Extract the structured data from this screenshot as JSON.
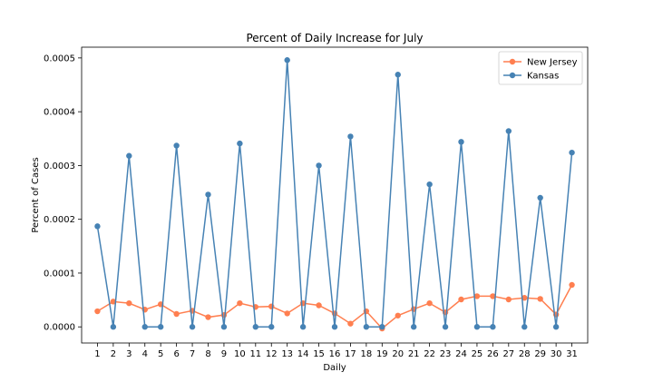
{
  "chart_data": {
    "type": "line",
    "title": "Percent of Daily Increase for July",
    "xlabel": "Daily",
    "ylabel": "Percent of Cases",
    "x": [
      1,
      2,
      3,
      4,
      5,
      6,
      7,
      8,
      9,
      10,
      11,
      12,
      13,
      14,
      15,
      16,
      17,
      18,
      19,
      20,
      21,
      22,
      23,
      24,
      25,
      26,
      27,
      28,
      29,
      30,
      31
    ],
    "x_tick_labels": [
      "1",
      "2",
      "3",
      "4",
      "5",
      "6",
      "7",
      "8",
      "9",
      "10",
      "11",
      "12",
      "13",
      "14",
      "15",
      "16",
      "17",
      "18",
      "19",
      "20",
      "21",
      "22",
      "23",
      "24",
      "25",
      "26",
      "27",
      "28",
      "29",
      "30",
      "31"
    ],
    "ylim": [
      -3e-05,
      0.00052
    ],
    "yticks": [
      0,
      0.0001,
      0.0002,
      0.0003,
      0.0004,
      0.0005
    ],
    "ytick_labels": [
      "0.0000",
      "0.0001",
      "0.0002",
      "0.0003",
      "0.0004",
      "0.0005"
    ],
    "legend_position": "top-right",
    "grid": false,
    "series": [
      {
        "name": "New Jersey",
        "color": "#ff7f50",
        "values": [
          2.9e-05,
          4.7e-05,
          4.4e-05,
          3.2e-05,
          4.2e-05,
          2.4e-05,
          3e-05,
          1.8e-05,
          2.2e-05,
          4.4e-05,
          3.7e-05,
          3.8e-05,
          2.5e-05,
          4.4e-05,
          4e-05,
          2.5e-05,
          6e-06,
          2.9e-05,
          -3e-06,
          2.1e-05,
          3.3e-05,
          4.4e-05,
          2.7e-05,
          5.1e-05,
          5.7e-05,
          5.7e-05,
          5.1e-05,
          5.4e-05,
          5.2e-05,
          2.3e-05,
          7.8e-05
        ]
      },
      {
        "name": "Kansas",
        "color": "#4682b4",
        "values": [
          0.000187,
          0.0,
          0.000318,
          0.0,
          0.0,
          0.000337,
          0.0,
          0.000246,
          0.0,
          0.000341,
          0.0,
          0.0,
          0.000496,
          0.0,
          0.0003,
          0.0,
          0.000354,
          0.0,
          0.0,
          0.000469,
          0.0,
          0.000265,
          0.0,
          0.000344,
          0.0,
          0.0,
          0.000364,
          0.0,
          0.00024,
          0.0,
          0.000324
        ]
      }
    ]
  }
}
